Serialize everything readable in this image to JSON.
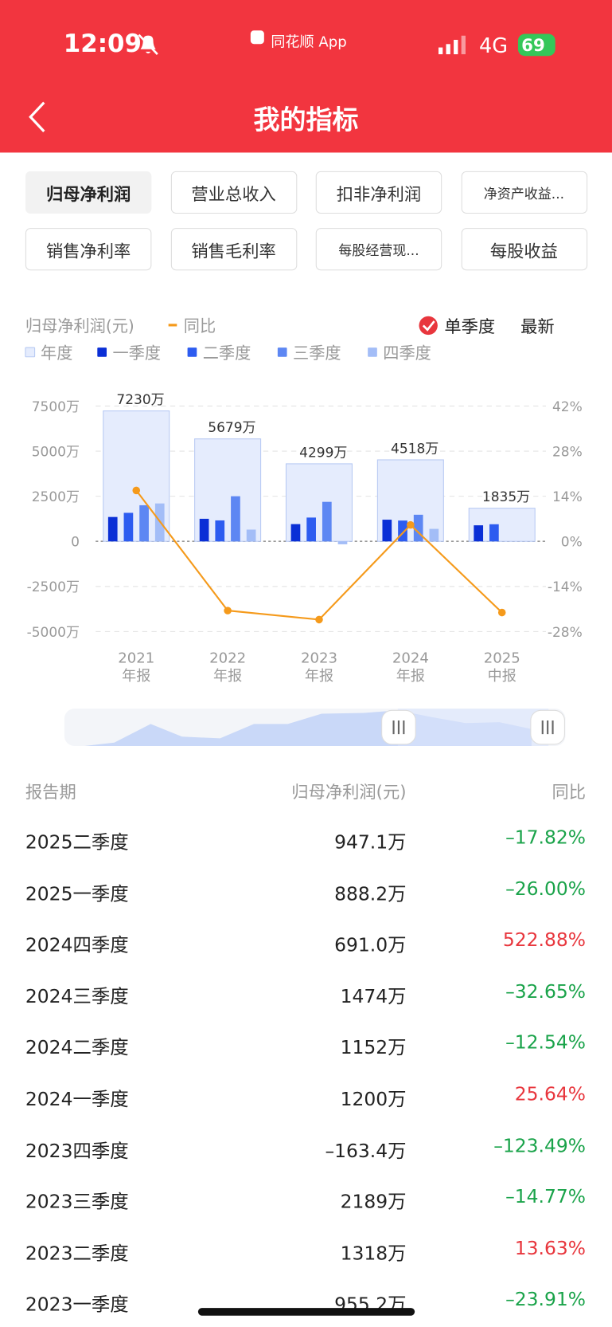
{
  "status": {
    "time": "12:09",
    "app": "同花顺 App",
    "network": "4G",
    "battery": "69"
  },
  "header": {
    "title": "我的指标"
  },
  "tabs": [
    "归母净利润",
    "营业总收入",
    "扣非净利润",
    "净资产收益...",
    "销售净利率",
    "销售毛利率",
    "每股经营现...",
    "每股收益"
  ],
  "chart_data": {
    "type": "bar",
    "legend_title": "归母净利润(元)",
    "options": [
      "单季度",
      "最新"
    ],
    "categories": [
      [
        "2021",
        "年报"
      ],
      [
        "2022",
        "年报"
      ],
      [
        "2023",
        "年报"
      ],
      [
        "2024",
        "年报"
      ],
      [
        "2025",
        "中报"
      ]
    ],
    "series": [
      {
        "name": "年度",
        "color": "#e5ecfd",
        "edge_color": "#b7c9f3",
        "values": [
          7230,
          5679,
          4299,
          4518,
          1835
        ],
        "value_labels": [
          "7230万",
          "5679万",
          "4299万",
          "4518万",
          "1835万"
        ]
      },
      {
        "name": "一季度",
        "color": "#0a2fd6",
        "values": [
          1350,
          1250,
          955.2,
          1200,
          888.2
        ]
      },
      {
        "name": "二季度",
        "color": "#2d5cf0",
        "values": [
          1580,
          1160,
          1318,
          1152,
          947.1
        ]
      },
      {
        "name": "三季度",
        "color": "#5d87f3",
        "values": [
          2000,
          2500,
          2189,
          1474,
          null
        ]
      },
      {
        "name": "四季度",
        "color": "#a3bdf7",
        "values": [
          2100,
          650,
          -163.4,
          691.0,
          null
        ]
      },
      {
        "name": "同比",
        "color": "#f59a1b",
        "axis": "y2",
        "values": [
          15.8,
          -21.5,
          -24.3,
          5.1,
          -22.1
        ]
      }
    ],
    "ylim": [
      -5000,
      7500
    ],
    "yticks": [
      {
        "value": 7500,
        "label": "7500万"
      },
      {
        "value": 5000,
        "label": "5000万"
      },
      {
        "value": 2500,
        "label": "2500万"
      },
      0,
      {
        "value": -2500,
        "label": "-2500万"
      },
      {
        "value": -5000,
        "label": "-5000万"
      }
    ],
    "y2lim": [
      -28,
      42
    ],
    "y2ticks": [
      {
        "value": 42,
        "label": "42%"
      },
      {
        "value": 28,
        "label": "28%"
      },
      {
        "value": 14,
        "label": "14%"
      },
      {
        "value": 0,
        "label": "0%"
      },
      {
        "value": -14,
        "label": "-14%"
      },
      {
        "value": -28,
        "label": "-28%"
      }
    ],
    "grid": true
  },
  "table": {
    "header": [
      "报告期",
      "归母净利润(元)",
      "同比"
    ],
    "rows": [
      {
        "period": "2025二季度",
        "profit": "947.1万",
        "change": "–17.82%",
        "color": "#1aa34a"
      },
      {
        "period": "2025一季度",
        "profit": "888.2万",
        "change": "–26.00%",
        "color": "#1aa34a"
      },
      {
        "period": "2024四季度",
        "profit": "691.0万",
        "change": "522.88%",
        "color": "#e8363d"
      },
      {
        "period": "2024三季度",
        "profit": "1474万",
        "change": "–32.65%",
        "color": "#1aa34a"
      },
      {
        "period": "2024二季度",
        "profit": "1152万",
        "change": "–12.54%",
        "color": "#1aa34a"
      },
      {
        "period": "2024一季度",
        "profit": "1200万",
        "change": "25.64%",
        "color": "#e8363d"
      },
      {
        "period": "2023四季度",
        "profit": "–163.4万",
        "change": "–123.49%",
        "color": "#1aa34a"
      },
      {
        "period": "2023三季度",
        "profit": "2189万",
        "change": "–14.77%",
        "color": "#1aa34a"
      },
      {
        "period": "2023二季度",
        "profit": "1318万",
        "change": "13.63%",
        "color": "#e8363d"
      },
      {
        "period": "2023一季度",
        "profit": "955.2万",
        "change": "–23.91%",
        "color": "#1aa34a"
      }
    ]
  }
}
